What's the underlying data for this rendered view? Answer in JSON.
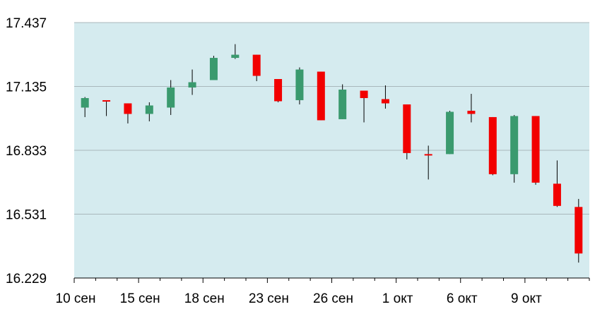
{
  "chart_data": {
    "type": "candlestick",
    "title": "",
    "xlabel": "",
    "ylabel": "",
    "ylim": [
      16.229,
      17.437
    ],
    "y_ticks": [
      "17.437",
      "17.135",
      "16.833",
      "16.531",
      "16.229"
    ],
    "x_tick_labels": [
      {
        "index": 0,
        "label": "10 сен"
      },
      {
        "index": 3,
        "label": "15 сен"
      },
      {
        "index": 6,
        "label": "18 сен"
      },
      {
        "index": 9,
        "label": "23 сен"
      },
      {
        "index": 12,
        "label": "26 сен"
      },
      {
        "index": 15,
        "label": "1 окт"
      },
      {
        "index": 18,
        "label": "6 окт"
      },
      {
        "index": 21,
        "label": "9 окт"
      }
    ],
    "grid": true,
    "colors": {
      "up": "#3a9a6e",
      "down": "#f20000",
      "plot_bg": "#d5ebef",
      "grid": "#a9b7bb",
      "wick": "#000000"
    },
    "candles": [
      {
        "open": 17.035,
        "high": 17.085,
        "low": 16.99,
        "close": 17.08
      },
      {
        "open": 17.07,
        "high": 17.07,
        "low": 16.995,
        "close": 17.065
      },
      {
        "open": 17.055,
        "high": 17.055,
        "low": 16.96,
        "close": 17.005
      },
      {
        "open": 17.005,
        "high": 17.06,
        "low": 16.97,
        "close": 17.045
      },
      {
        "open": 17.035,
        "high": 17.165,
        "low": 17.0,
        "close": 17.13
      },
      {
        "open": 17.13,
        "high": 17.215,
        "low": 17.095,
        "close": 17.155
      },
      {
        "open": 17.165,
        "high": 17.28,
        "low": 17.165,
        "close": 17.27
      },
      {
        "open": 17.27,
        "high": 17.335,
        "low": 17.265,
        "close": 17.285
      },
      {
        "open": 17.285,
        "high": 17.285,
        "low": 17.16,
        "close": 17.185
      },
      {
        "open": 17.17,
        "high": 17.17,
        "low": 17.06,
        "close": 17.065
      },
      {
        "open": 17.07,
        "high": 17.225,
        "low": 17.05,
        "close": 17.215
      },
      {
        "open": 17.205,
        "high": 17.205,
        "low": 16.975,
        "close": 16.975
      },
      {
        "open": 16.98,
        "high": 17.145,
        "low": 16.98,
        "close": 17.12
      },
      {
        "open": 17.115,
        "high": 17.115,
        "low": 16.965,
        "close": 17.08
      },
      {
        "open": 17.075,
        "high": 17.14,
        "low": 17.03,
        "close": 17.055
      },
      {
        "open": 17.05,
        "high": 17.05,
        "low": 16.79,
        "close": 16.82
      },
      {
        "open": 16.815,
        "high": 16.855,
        "low": 16.695,
        "close": 16.813
      },
      {
        "open": 16.815,
        "high": 17.02,
        "low": 16.815,
        "close": 17.015
      },
      {
        "open": 17.02,
        "high": 17.1,
        "low": 16.965,
        "close": 17.005
      },
      {
        "open": 16.99,
        "high": 16.99,
        "low": 16.715,
        "close": 16.72
      },
      {
        "open": 16.72,
        "high": 17.0,
        "low": 16.68,
        "close": 16.995
      },
      {
        "open": 16.995,
        "high": 16.995,
        "low": 16.67,
        "close": 16.68
      },
      {
        "open": 16.675,
        "high": 16.785,
        "low": 16.565,
        "close": 16.57
      },
      {
        "open": 16.565,
        "high": 16.603,
        "low": 16.302,
        "close": 16.345
      }
    ]
  }
}
